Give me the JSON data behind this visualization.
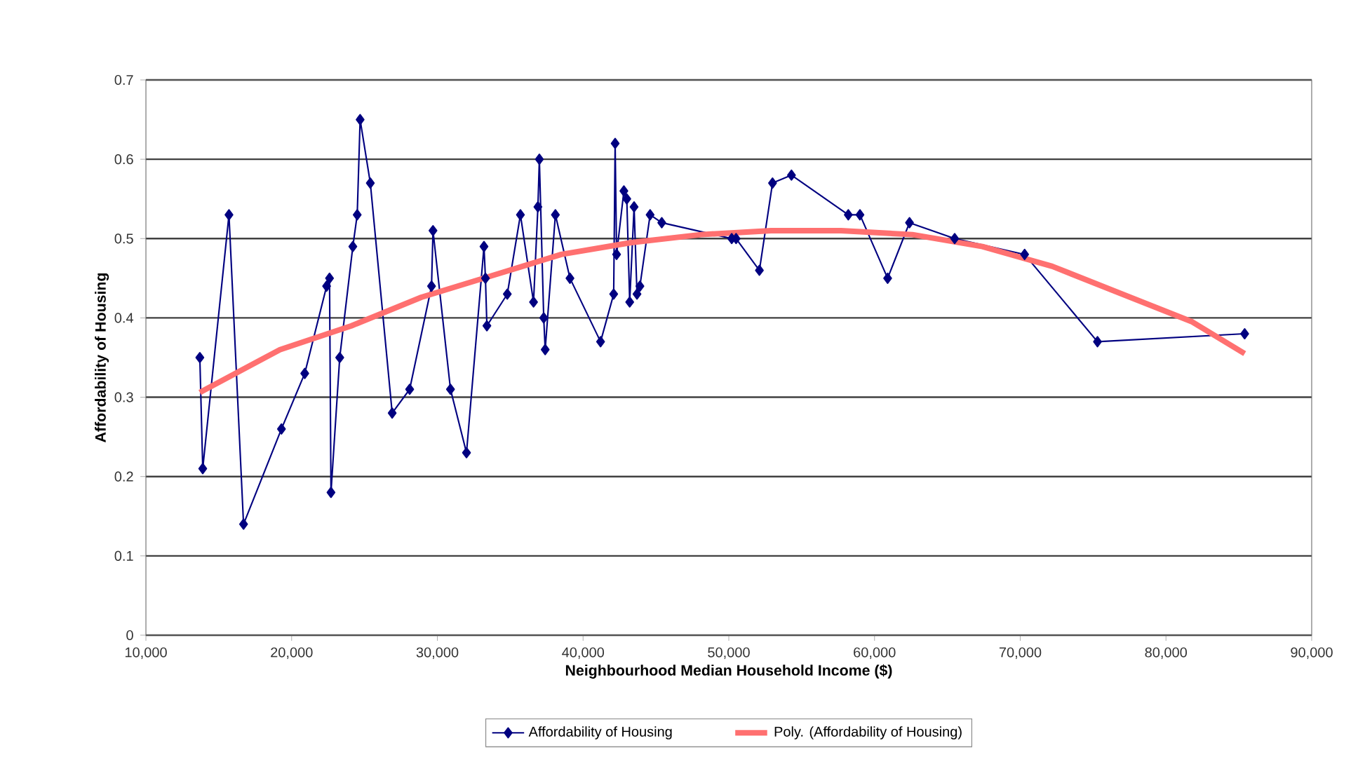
{
  "chart_data": {
    "type": "line",
    "xlabel": "Neighbourhood Median Household Income ($)",
    "ylabel": "Affordability of Housing",
    "xlim": [
      10000,
      90000
    ],
    "ylim": [
      0,
      0.7
    ],
    "xticks": [
      {
        "value": 10000,
        "label": "10,000"
      },
      {
        "value": 20000,
        "label": "20,000"
      },
      {
        "value": 30000,
        "label": "30,000"
      },
      {
        "value": 40000,
        "label": "40,000"
      },
      {
        "value": 50000,
        "label": "50,000"
      },
      {
        "value": 60000,
        "label": "60,000"
      },
      {
        "value": 70000,
        "label": "70,000"
      },
      {
        "value": 80000,
        "label": "80,000"
      },
      {
        "value": 90000,
        "label": "90,000"
      }
    ],
    "yticks": [
      0,
      0.1,
      0.2,
      0.3,
      0.4,
      0.5,
      0.6,
      0.7
    ],
    "grid": "y",
    "legend": "bottom",
    "marker": "diamond",
    "line_style": "solid",
    "series": [
      {
        "name": "Affordability of Housing",
        "color": "#000080",
        "x": [
          13700,
          13900,
          15700,
          16700,
          19300,
          20900,
          22400,
          22600,
          22700,
          23300,
          24200,
          24500,
          24700,
          25400,
          26900,
          28100,
          29600,
          29700,
          30900,
          32000,
          33200,
          33300,
          33400,
          34800,
          35700,
          36600,
          36900,
          37000,
          37300,
          37400,
          38100,
          39100,
          41200,
          42100,
          42200,
          42300,
          42800,
          43000,
          43200,
          43500,
          43700,
          43900,
          44600,
          45400,
          50200,
          50500,
          52100,
          53000,
          54300,
          58200,
          59000,
          60900,
          62400,
          65500,
          70300,
          75300,
          85400
        ],
        "values": [
          0.35,
          0.21,
          0.53,
          0.14,
          0.26,
          0.33,
          0.44,
          0.45,
          0.18,
          0.35,
          0.49,
          0.53,
          0.65,
          0.57,
          0.28,
          0.31,
          0.44,
          0.51,
          0.31,
          0.23,
          0.49,
          0.45,
          0.39,
          0.43,
          0.53,
          0.42,
          0.54,
          0.6,
          0.4,
          0.36,
          0.53,
          0.45,
          0.37,
          0.43,
          0.62,
          0.48,
          0.56,
          0.55,
          0.42,
          0.54,
          0.43,
          0.44,
          0.53,
          0.52,
          0.5,
          0.5,
          0.46,
          0.57,
          0.58,
          0.53,
          0.53,
          0.45,
          0.52,
          0.5,
          0.48,
          0.37,
          0.38
        ]
      },
      {
        "name": "Poly. (Affordability of Housing)",
        "color": "#ff7070",
        "type": "line",
        "marker": "none",
        "x": [
          13700,
          19200,
          24100,
          28900,
          33700,
          38500,
          43300,
          48100,
          52900,
          57700,
          62600,
          67400,
          72200,
          77000,
          81800,
          85400
        ],
        "values": [
          0.306,
          0.36,
          0.39,
          0.426,
          0.453,
          0.48,
          0.495,
          0.505,
          0.51,
          0.51,
          0.505,
          0.49,
          0.465,
          0.43,
          0.395,
          0.355
        ]
      }
    ]
  }
}
